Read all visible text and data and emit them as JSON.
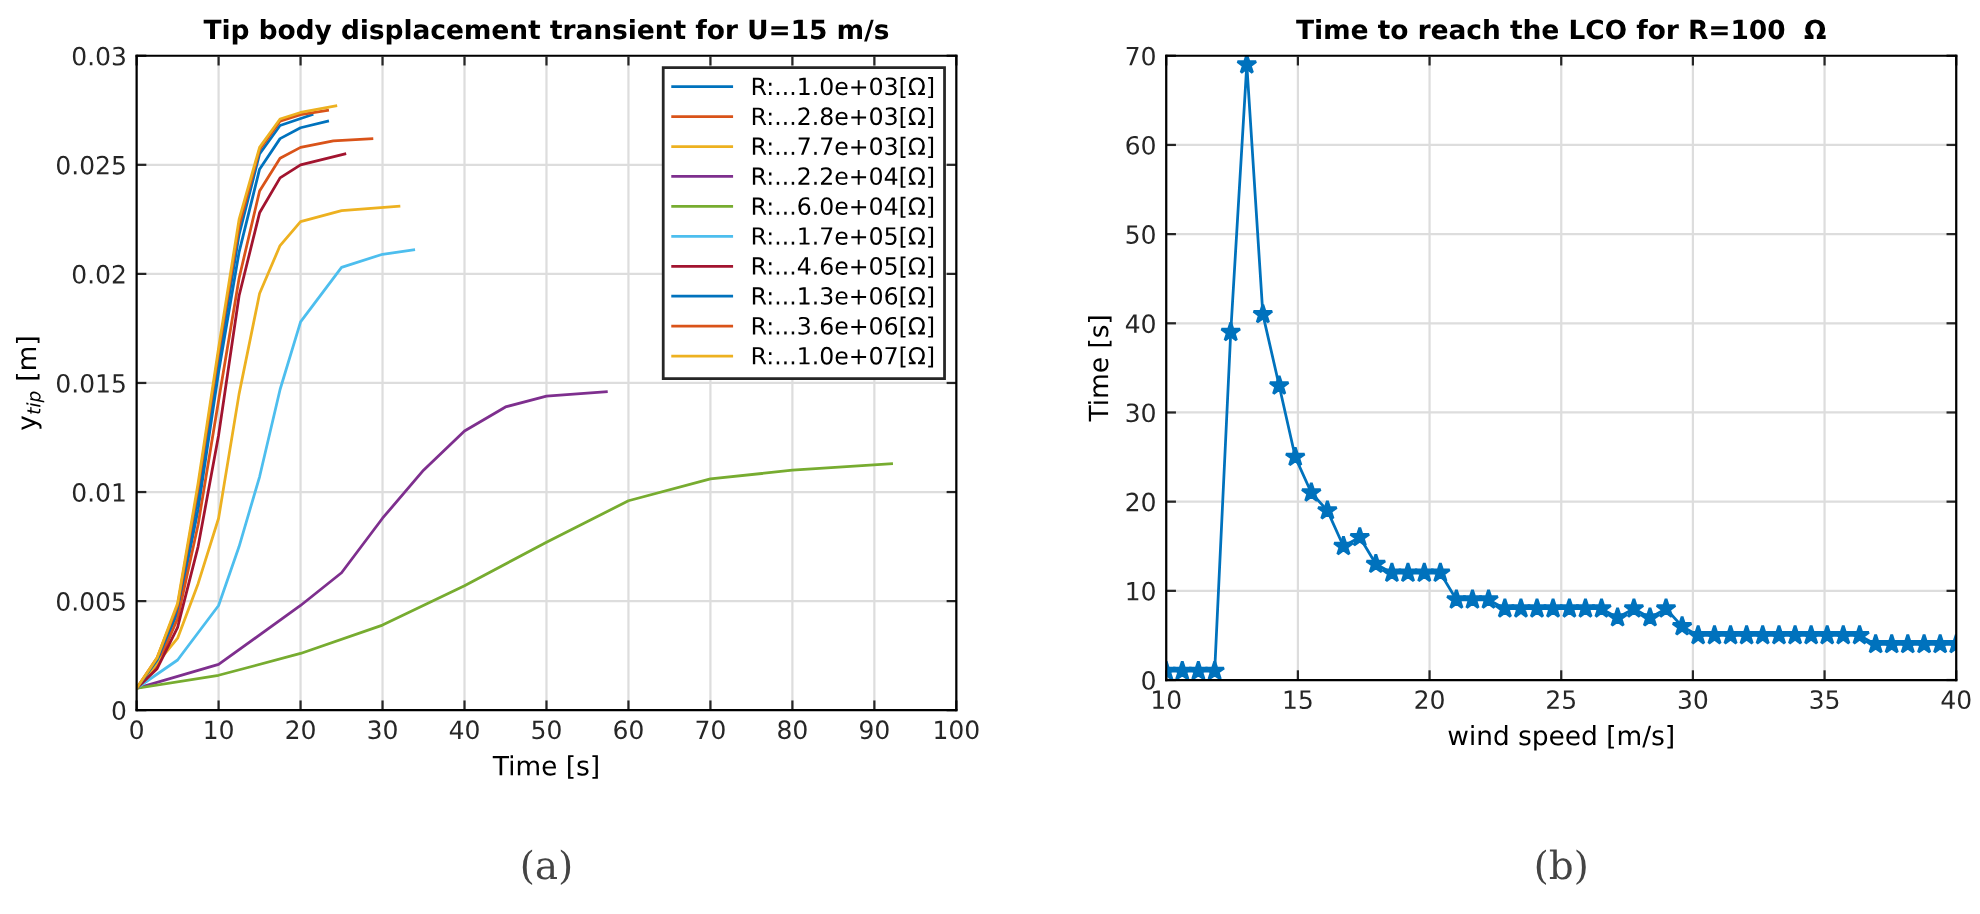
{
  "chart_data": [
    {
      "type": "line",
      "title": "Tip body displacement transient for U=15 m/s",
      "xlabel": "Time [s]",
      "ylabel": "y$_{tip}$ [m]",
      "annotations": [
        "(a)"
      ],
      "xlim": [
        0,
        100
      ],
      "ylim": [
        0,
        0.03
      ],
      "xticks": [
        0,
        10,
        20,
        30,
        40,
        50,
        60,
        70,
        80,
        90,
        100
      ],
      "yticks": [
        0,
        0.005,
        0.01,
        0.015,
        0.02,
        0.025,
        0.03
      ],
      "grid": true,
      "legend": "top right",
      "marker": "none",
      "line_style": "solid",
      "series": [
        {
          "name": "R:...1.0e+03[Ω]",
          "color": "#0072bd",
          "x": [
            0,
            2.5,
            5,
            7.5,
            10,
            12.5,
            15,
            17.5,
            20,
            23.3
          ],
          "values": [
            0.001,
            0.0022,
            0.0045,
            0.0092,
            0.0155,
            0.021,
            0.0248,
            0.0262,
            0.0267,
            0.027
          ]
        },
        {
          "name": "R:...2.8e+03[Ω]",
          "color": "#d95319",
          "x": [
            0,
            2.5,
            5,
            7.5,
            10,
            12.5,
            15,
            17.5,
            20,
            24,
            28.7
          ],
          "values": [
            0.001,
            0.002,
            0.0042,
            0.0085,
            0.0142,
            0.0198,
            0.0238,
            0.0253,
            0.0258,
            0.0261,
            0.0262
          ]
        },
        {
          "name": "R:...7.7e+03[Ω]",
          "color": "#edb120",
          "x": [
            0,
            5,
            7.5,
            10,
            12.5,
            15,
            17.5,
            20,
            25,
            32
          ],
          "values": [
            0.001,
            0.0033,
            0.0058,
            0.0088,
            0.0145,
            0.0191,
            0.0213,
            0.0224,
            0.0229,
            0.0231
          ]
        },
        {
          "name": "R:...2.2e+04[Ω]",
          "color": "#7e2f8e",
          "x": [
            0,
            10,
            20,
            25,
            30,
            35,
            40,
            45,
            50,
            57.3
          ],
          "values": [
            0.001,
            0.0021,
            0.0048,
            0.0063,
            0.0088,
            0.011,
            0.0128,
            0.0139,
            0.0144,
            0.0146
          ]
        },
        {
          "name": "R:...6.0e+04[Ω]",
          "color": "#77ac30",
          "x": [
            0,
            10,
            20,
            30,
            40,
            50,
            60,
            70,
            80,
            92.1
          ],
          "values": [
            0.001,
            0.0016,
            0.0026,
            0.0039,
            0.0057,
            0.0077,
            0.0096,
            0.0106,
            0.011,
            0.0113
          ]
        },
        {
          "name": "R:...1.7e+05[Ω]",
          "color": "#4dbeee",
          "x": [
            0,
            5,
            10,
            12.5,
            15,
            17.5,
            20,
            25,
            30,
            33.8
          ],
          "values": [
            0.001,
            0.0023,
            0.0048,
            0.0075,
            0.0107,
            0.0147,
            0.0178,
            0.0203,
            0.0209,
            0.0211
          ]
        },
        {
          "name": "R:...4.6e+05[Ω]",
          "color": "#a2142f",
          "x": [
            0,
            2.5,
            5,
            7.5,
            10,
            12.5,
            15,
            17.5,
            20,
            25.4
          ],
          "values": [
            0.001,
            0.0019,
            0.0038,
            0.0075,
            0.0126,
            0.019,
            0.0228,
            0.0244,
            0.025,
            0.0255
          ]
        },
        {
          "name": "R:...1.3e+06[Ω]",
          "color": "#0072bd",
          "x": [
            0,
            2.5,
            5,
            7.5,
            10,
            12.5,
            15,
            17.5,
            21.4
          ],
          "values": [
            0.001,
            0.0023,
            0.0047,
            0.0098,
            0.016,
            0.0218,
            0.0255,
            0.0268,
            0.0273
          ]
        },
        {
          "name": "R:...3.6e+06[Ω]",
          "color": "#d95319",
          "x": [
            0,
            2.5,
            5,
            7.5,
            10,
            12.5,
            15,
            17.5,
            20,
            23.3
          ],
          "values": [
            0.001,
            0.0024,
            0.0048,
            0.0102,
            0.0164,
            0.0222,
            0.0257,
            0.027,
            0.0273,
            0.0275
          ]
        },
        {
          "name": "R:...1.0e+07[Ω]",
          "color": "#edb120",
          "x": [
            0,
            2.5,
            5,
            7.5,
            10,
            12.5,
            15,
            17.5,
            20,
            24.3
          ],
          "values": [
            0.001,
            0.0024,
            0.0049,
            0.0104,
            0.0166,
            0.0225,
            0.0258,
            0.0271,
            0.0274,
            0.0277
          ]
        }
      ]
    },
    {
      "type": "line",
      "title": "Time to reach the LCO for R=100  Ω",
      "xlabel": "wind speed [m/s]",
      "ylabel": "Time [s]",
      "annotations": [
        "(b)"
      ],
      "xlim": [
        10,
        40
      ],
      "ylim": [
        0,
        70
      ],
      "xticks": [
        10,
        15,
        20,
        25,
        30,
        35,
        40
      ],
      "yticks": [
        0,
        10,
        20,
        30,
        40,
        50,
        60,
        70
      ],
      "grid": true,
      "legend": false,
      "marker": "star",
      "line_style": "solid",
      "series": [
        {
          "color": "#0072bd",
          "x": [
            10.0,
            10.61,
            11.22,
            11.84,
            12.45,
            13.06,
            13.67,
            14.29,
            14.9,
            15.51,
            16.12,
            16.73,
            17.35,
            17.96,
            18.57,
            19.18,
            19.8,
            20.41,
            21.02,
            21.63,
            22.24,
            22.86,
            23.47,
            24.08,
            24.69,
            25.31,
            25.92,
            26.53,
            27.14,
            27.76,
            28.37,
            28.98,
            29.59,
            30.2,
            30.82,
            31.43,
            32.04,
            32.65,
            33.27,
            33.88,
            34.49,
            35.1,
            35.71,
            36.33,
            36.94,
            37.55,
            38.16,
            38.78,
            39.39,
            40.0
          ],
          "values": [
            1,
            1,
            1,
            1,
            39,
            69,
            41,
            33,
            25,
            21,
            19,
            15,
            16,
            13,
            12,
            12,
            12,
            12,
            9,
            9,
            9,
            8,
            8,
            8,
            8,
            8,
            8,
            8,
            7,
            8,
            7,
            8,
            6,
            5,
            5,
            5,
            5,
            5,
            5,
            5,
            5,
            5,
            5,
            5,
            4,
            4,
            4,
            4,
            4,
            4
          ]
        }
      ]
    }
  ]
}
